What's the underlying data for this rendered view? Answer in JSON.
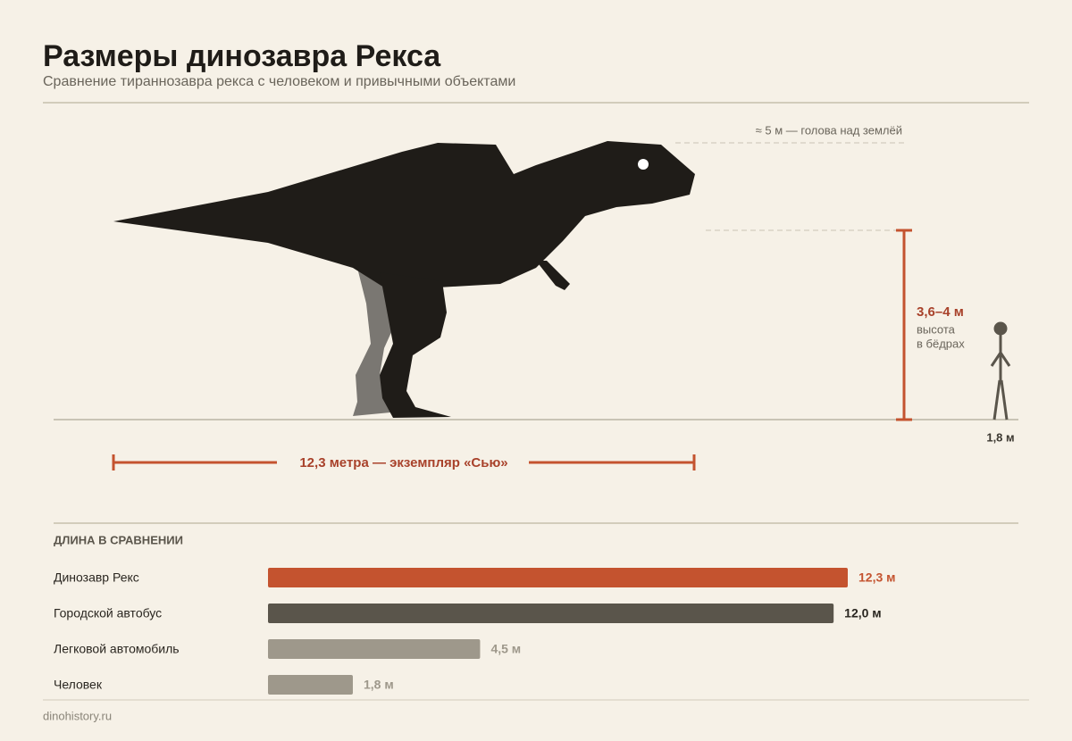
{
  "header": {
    "title": "Размеры динозавра Рекса",
    "subtitle": "Сравнение тираннозавра рекса с человеком и привычными объектами"
  },
  "illustration": {
    "head_note": "≈ 5 м — голова над землёй",
    "hip_height": "3,6–4 м",
    "hip_caption": [
      "высота",
      "в бёдрах"
    ],
    "human_height": "1,8 м",
    "length_note": "12,3 метра — экземпляр «Сью»"
  },
  "chart_data": {
    "type": "hbar",
    "title": "ДЛИНА В СРАВНЕНИИ",
    "categories": [
      "Динозавр Рекс",
      "Городской автобус",
      "Легковой автомобиль",
      "Человек"
    ],
    "values": [
      12.3,
      12.0,
      4.5,
      1.8
    ],
    "value_labels": [
      "12,3 м",
      "12,0 м",
      "4,5 м",
      "1,8 м"
    ],
    "colors": [
      "#c4532f",
      "#5a554b",
      "#9e988b",
      "#9e988b"
    ]
  },
  "footer": {
    "source": "dinohistory.ru"
  }
}
